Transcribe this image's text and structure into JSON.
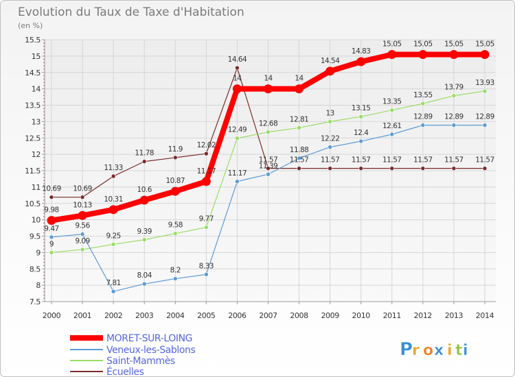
{
  "chart_data": {
    "type": "line",
    "title": "Evolution du Taux de Taxe d'Habitation",
    "subtitle": "(en %)",
    "x": [
      "2000",
      "2001",
      "2002",
      "2003",
      "2004",
      "2005",
      "2006",
      "2007",
      "2008",
      "2009",
      "2010",
      "2011",
      "2012",
      "2013",
      "2014"
    ],
    "ylim": [
      7.5,
      15.5
    ],
    "yticks": [
      "7.5",
      "8",
      "8.5",
      "9",
      "9.5",
      "10",
      "10.5",
      "11",
      "11.5",
      "12",
      "12.5",
      "13",
      "13.5",
      "14",
      "14.5",
      "15",
      "15.5"
    ],
    "grid": true,
    "legend": "bottom-left",
    "series": [
      {
        "name": "MORET-SUR-LOING",
        "color": "#ff0000",
        "values": [
          9.98,
          10.13,
          10.31,
          10.6,
          10.87,
          11.17,
          14,
          14,
          14,
          14.54,
          14.83,
          15.05,
          15.05,
          15.05,
          15.05
        ],
        "labels": [
          "9.98",
          "10.13",
          "10.31",
          "10.6",
          "10.87",
          "11.17",
          "14",
          "14",
          "14",
          "14.54",
          "14.83",
          "15.05",
          "15.05",
          "15.05",
          "15.05"
        ]
      },
      {
        "name": "Veneux-les-Sablons",
        "color": "#5b9bd5",
        "values": [
          9.47,
          9.56,
          7.81,
          8.04,
          8.2,
          8.33,
          11.17,
          11.39,
          11.88,
          12.22,
          12.4,
          12.61,
          12.89,
          12.89,
          12.89
        ],
        "labels": [
          "9.47",
          "9.56",
          "7.81",
          "8.04",
          "8.2",
          "8.33",
          "11.17",
          "11.39",
          "11.88",
          "12.22",
          "12.4",
          "12.61",
          "12.89",
          "12.89",
          "12.89"
        ]
      },
      {
        "name": "Saint-Mammès",
        "color": "#99dd66",
        "values": [
          9,
          9.09,
          9.25,
          9.39,
          9.58,
          9.77,
          12.49,
          12.68,
          12.81,
          13,
          13.15,
          13.35,
          13.55,
          13.79,
          13.93
        ],
        "labels": [
          "9",
          "9.09",
          "9.25",
          "9.39",
          "9.58",
          "9.77",
          "12.49",
          "12.68",
          "12.81",
          "13",
          "13.15",
          "13.35",
          "13.55",
          "13.79",
          "13.93"
        ]
      },
      {
        "name": "Écuelles",
        "color": "#7a2a2a",
        "values": [
          10.69,
          10.69,
          11.33,
          11.78,
          11.9,
          12.02,
          14.64,
          11.57,
          11.57,
          11.57,
          11.57,
          11.57,
          11.57,
          11.57,
          11.57
        ],
        "labels": [
          "10.69",
          "10.69",
          "11.33",
          "11.78",
          "11.9",
          "12.02",
          "14.64",
          "11.57",
          "11.57",
          "11.57",
          "11.57",
          "11.57",
          "11.57",
          "11.57",
          "11.57"
        ]
      }
    ]
  },
  "brand": {
    "letters": [
      "P",
      "r",
      "o",
      "x",
      "i",
      "t",
      "i"
    ],
    "colors": [
      "#3a8fd8",
      "#f0a020",
      "#f08020",
      "#3a8fd8",
      "#f0a020",
      "#8cc63f",
      "#3a8fd8"
    ]
  }
}
